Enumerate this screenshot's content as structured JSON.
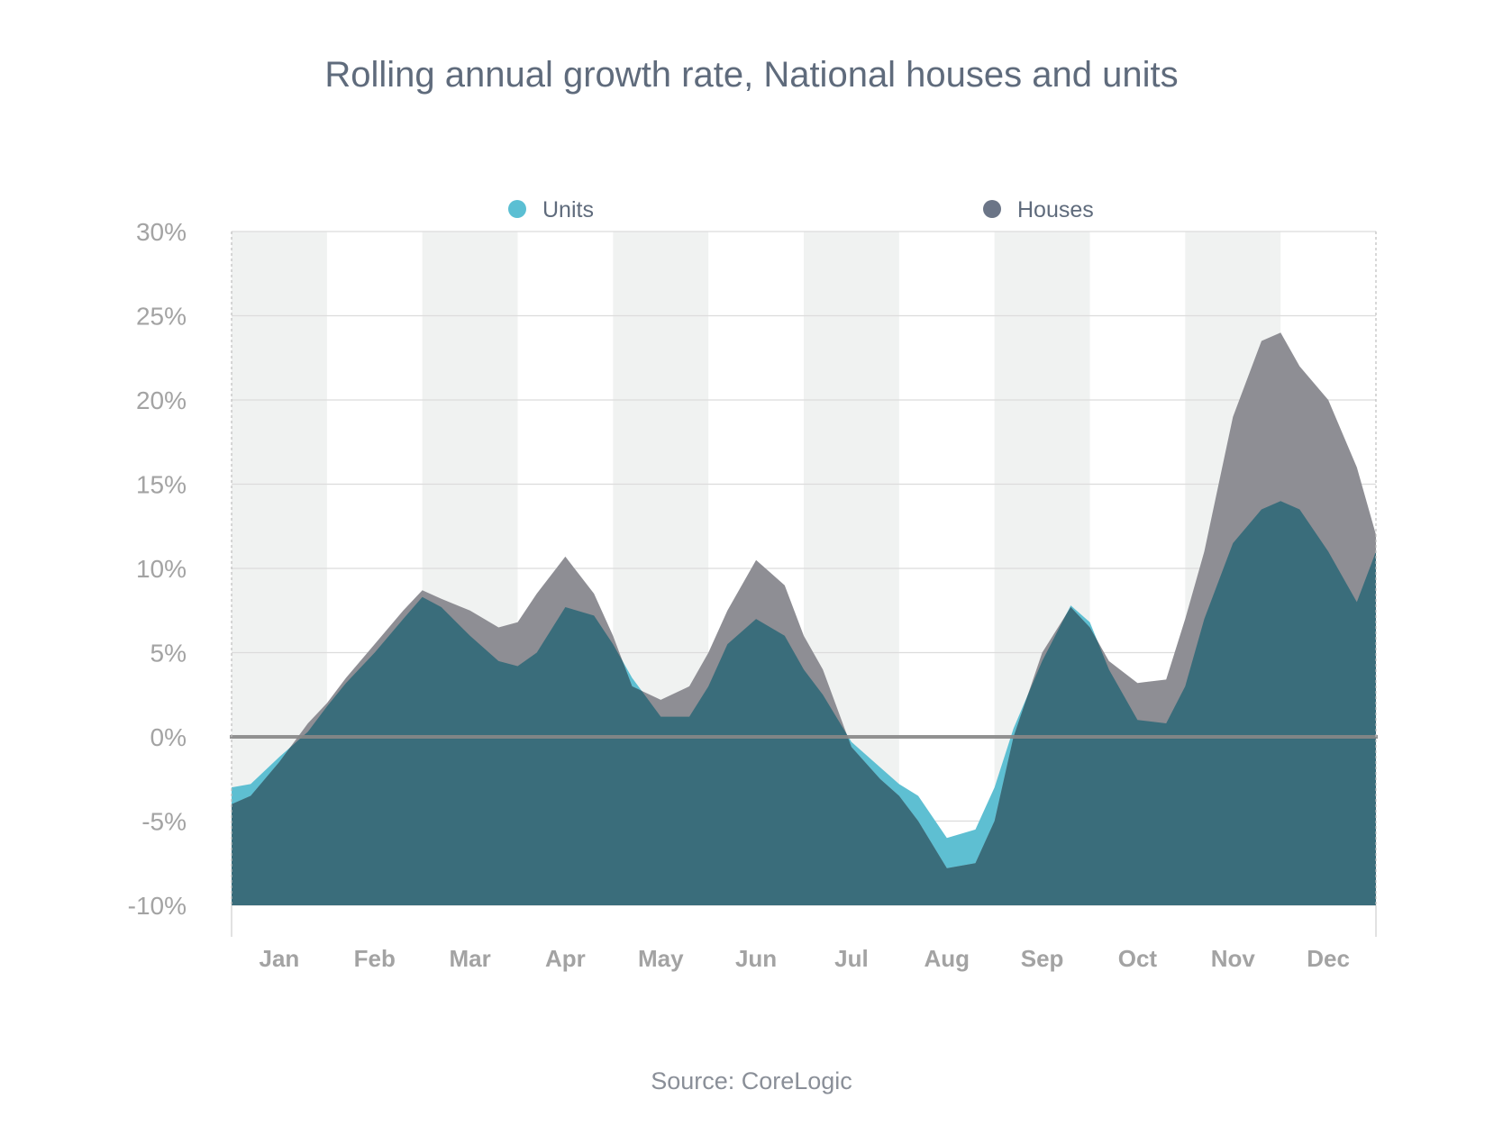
{
  "chart_data": {
    "type": "area",
    "title": "Rolling annual growth rate, National houses and units",
    "source": "Source: CoreLogic",
    "xlabel": "",
    "ylabel": "",
    "ylim": [
      -10,
      30
    ],
    "yticks": [
      -10,
      -5,
      0,
      5,
      10,
      15,
      20,
      25,
      30
    ],
    "ytick_labels": [
      "-10%",
      "-5%",
      "0%",
      "5%",
      "10%",
      "15%",
      "20%",
      "25%",
      "30%"
    ],
    "xlim": [
      0,
      12
    ],
    "categories": [
      "Jan",
      "Feb",
      "Mar",
      "Apr",
      "May",
      "Jun",
      "Jul",
      "Aug",
      "Sep",
      "Oct",
      "Nov",
      "Dec"
    ],
    "legend_position": "top",
    "grid": true,
    "colors": {
      "units": "#5ebfd2",
      "houses": "#8e8e94",
      "overlap": "#3a6d7b",
      "band": "#f0f2f1",
      "zero_line": "#888888"
    },
    "series": [
      {
        "name": "Units",
        "legend_color": "#5bbfd3",
        "x": [
          0,
          0.2,
          0.5,
          0.8,
          1.0,
          1.2,
          1.5,
          1.8,
          2.0,
          2.2,
          2.5,
          2.8,
          3.0,
          3.2,
          3.5,
          3.8,
          4.0,
          4.2,
          4.5,
          4.8,
          5.0,
          5.2,
          5.5,
          5.8,
          6.0,
          6.2,
          6.5,
          6.8,
          7.0,
          7.2,
          7.5,
          7.8,
          8.0,
          8.2,
          8.5,
          8.8,
          9.0,
          9.2,
          9.5,
          9.8,
          10.0,
          10.2,
          10.5,
          10.8,
          11.0,
          11.2,
          11.5,
          11.8,
          12.0
        ],
        "y": [
          -3.0,
          -2.8,
          -1.2,
          0.3,
          1.8,
          3.2,
          5.0,
          7.0,
          8.3,
          7.7,
          6.0,
          4.5,
          4.2,
          5.0,
          7.7,
          7.2,
          5.5,
          3.5,
          1.2,
          1.2,
          3.0,
          5.5,
          7.0,
          6.0,
          4.0,
          2.5,
          -0.3,
          -1.8,
          -2.8,
          -3.5,
          -6.0,
          -5.5,
          -3.0,
          0.5,
          4.5,
          7.8,
          6.8,
          4.0,
          1.0,
          0.8,
          3.0,
          7.0,
          11.5,
          13.5,
          14.0,
          13.5,
          11.0,
          8.0,
          11.0
        ]
      },
      {
        "name": "Houses",
        "legend_color": "#6b7587",
        "x": [
          0,
          0.2,
          0.5,
          0.8,
          1.0,
          1.2,
          1.5,
          1.8,
          2.0,
          2.2,
          2.5,
          2.8,
          3.0,
          3.2,
          3.5,
          3.8,
          4.0,
          4.2,
          4.5,
          4.8,
          5.0,
          5.2,
          5.5,
          5.8,
          6.0,
          6.2,
          6.5,
          6.8,
          7.0,
          7.2,
          7.5,
          7.8,
          8.0,
          8.2,
          8.5,
          8.8,
          9.0,
          9.2,
          9.5,
          9.8,
          10.0,
          10.2,
          10.5,
          10.8,
          11.0,
          11.2,
          11.5,
          11.8,
          12.0
        ],
        "y": [
          -4.0,
          -3.5,
          -1.5,
          0.8,
          2.0,
          3.5,
          5.5,
          7.5,
          8.7,
          8.2,
          7.5,
          6.5,
          6.8,
          8.5,
          10.7,
          8.5,
          6.0,
          3.0,
          2.2,
          3.0,
          5.0,
          7.5,
          10.5,
          9.0,
          6.0,
          4.0,
          -0.6,
          -2.5,
          -3.5,
          -5.0,
          -7.8,
          -7.5,
          -5.0,
          0.0,
          5.0,
          7.7,
          6.5,
          4.5,
          3.2,
          3.4,
          7.0,
          11.0,
          19.0,
          23.5,
          24.0,
          22.0,
          20.0,
          16.0,
          12.0
        ]
      }
    ]
  }
}
